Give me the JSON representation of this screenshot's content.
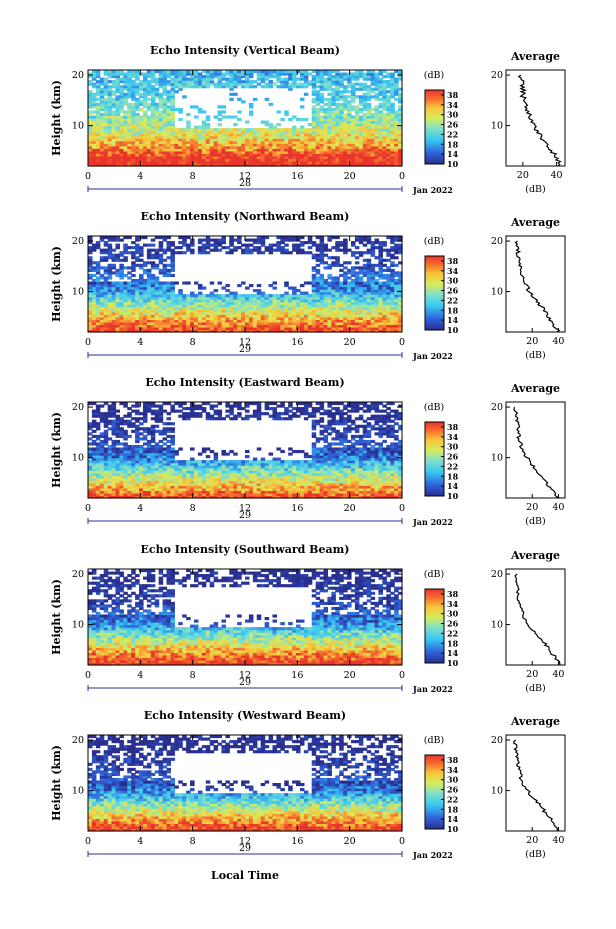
{
  "figure": {
    "xlabel": "Local Time",
    "ylabel": "Height (km)",
    "cbar_label": "(dB)",
    "avg_title": "Average",
    "avg_xlabel": "(dB)",
    "month_label": "Jan 2022"
  },
  "chart_data": [
    {
      "type": "heatmap",
      "title": "Echo Intensity (Vertical Beam)",
      "beam": "vertical",
      "day_label": "28",
      "x_ticks": [
        "0",
        "4",
        "8",
        "12",
        "16",
        "20",
        "0"
      ],
      "y_ticks": [
        "10",
        "20"
      ],
      "xlim": [
        0,
        24
      ],
      "ylim": [
        2,
        21
      ],
      "cbar_ticks": [
        "10",
        "14",
        "18",
        "22",
        "26",
        "30",
        "34",
        "38"
      ],
      "cbar_range": [
        10,
        40
      ],
      "average_profile": {
        "xlim": [
          10,
          45
        ],
        "x_ticks": [
          "20",
          "40"
        ],
        "height_km": [
          2,
          4,
          6,
          8,
          10,
          12,
          14,
          16,
          18,
          20
        ],
        "db": [
          42,
          40,
          34,
          30,
          27,
          24,
          22,
          20,
          20,
          18
        ]
      }
    },
    {
      "type": "heatmap",
      "title": "Echo Intensity (Northward Beam)",
      "beam": "northward",
      "day_label": "29",
      "x_ticks": [
        "0",
        "4",
        "8",
        "12",
        "16",
        "20",
        "0"
      ],
      "y_ticks": [
        "10",
        "20"
      ],
      "xlim": [
        0,
        24
      ],
      "ylim": [
        2,
        21
      ],
      "cbar_ticks": [
        "10",
        "14",
        "18",
        "22",
        "26",
        "30",
        "34",
        "38"
      ],
      "cbar_range": [
        10,
        40
      ],
      "average_profile": {
        "xlim": [
          0,
          45
        ],
        "x_ticks": [
          "20",
          "40"
        ],
        "height_km": [
          2,
          4,
          6,
          8,
          10,
          12,
          14,
          16,
          18,
          20
        ],
        "db": [
          40,
          35,
          30,
          24,
          18,
          14,
          12,
          10,
          9,
          8
        ]
      }
    },
    {
      "type": "heatmap",
      "title": "Echo Intensity (Eastward Beam)",
      "beam": "eastward",
      "day_label": "29",
      "x_ticks": [
        "0",
        "4",
        "8",
        "12",
        "16",
        "20",
        "0"
      ],
      "y_ticks": [
        "10",
        "20"
      ],
      "xlim": [
        0,
        24
      ],
      "ylim": [
        2,
        21
      ],
      "cbar_ticks": [
        "10",
        "14",
        "18",
        "22",
        "26",
        "30",
        "34",
        "38"
      ],
      "cbar_range": [
        10,
        40
      ],
      "average_profile": {
        "xlim": [
          0,
          45
        ],
        "x_ticks": [
          "20",
          "40"
        ],
        "height_km": [
          2,
          4,
          6,
          8,
          10,
          12,
          14,
          16,
          18,
          20
        ],
        "db": [
          40,
          34,
          28,
          22,
          16,
          12,
          10,
          9,
          8,
          7
        ]
      }
    },
    {
      "type": "heatmap",
      "title": "Echo Intensity (Southward Beam)",
      "beam": "southward",
      "day_label": "29",
      "x_ticks": [
        "0",
        "4",
        "8",
        "12",
        "16",
        "20",
        "0"
      ],
      "y_ticks": [
        "10",
        "20"
      ],
      "xlim": [
        0,
        24
      ],
      "ylim": [
        2,
        21
      ],
      "cbar_ticks": [
        "10",
        "14",
        "18",
        "22",
        "26",
        "30",
        "34",
        "38"
      ],
      "cbar_range": [
        10,
        40
      ],
      "average_profile": {
        "xlim": [
          0,
          45
        ],
        "x_ticks": [
          "20",
          "40"
        ],
        "height_km": [
          2,
          4,
          6,
          8,
          10,
          12,
          14,
          16,
          18,
          20
        ],
        "db": [
          41,
          36,
          30,
          24,
          17,
          13,
          10,
          9,
          8,
          7
        ]
      }
    },
    {
      "type": "heatmap",
      "title": "Echo Intensity (Westward Beam)",
      "beam": "westward",
      "day_label": "29",
      "x_ticks": [
        "0",
        "4",
        "8",
        "12",
        "16",
        "20",
        "0"
      ],
      "y_ticks": [
        "10",
        "20"
      ],
      "xlim": [
        0,
        24
      ],
      "ylim": [
        2,
        21
      ],
      "cbar_ticks": [
        "10",
        "14",
        "18",
        "22",
        "26",
        "30",
        "34",
        "38"
      ],
      "cbar_range": [
        10,
        40
      ],
      "average_profile": {
        "xlim": [
          0,
          45
        ],
        "x_ticks": [
          "20",
          "40"
        ],
        "height_km": [
          2,
          4,
          6,
          8,
          10,
          12,
          14,
          16,
          18,
          20
        ],
        "db": [
          41,
          35,
          29,
          23,
          16,
          12,
          10,
          9,
          8,
          7
        ]
      }
    }
  ]
}
